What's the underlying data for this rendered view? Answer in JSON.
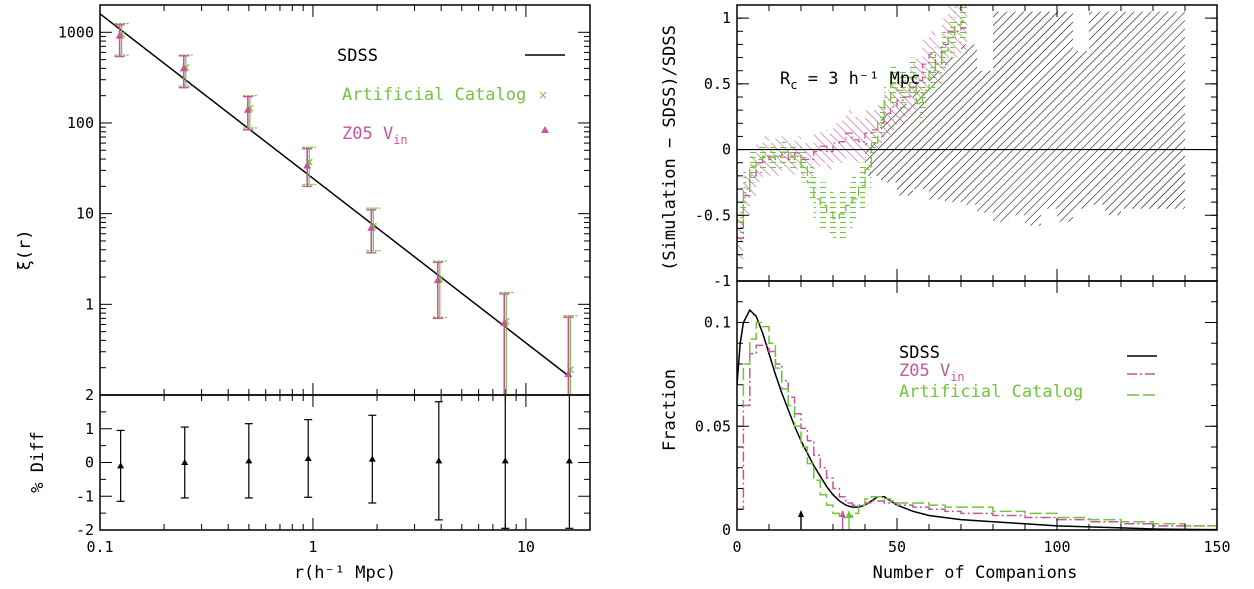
{
  "colors": {
    "sdss": "#000000",
    "artificial": "#72c43c",
    "z05": "#c8549c"
  },
  "chart_data": [
    {
      "type": "scatter",
      "panel": "correlation-function",
      "ylabel": "ξ(r)",
      "xscale": "log",
      "yscale": "log",
      "xlim": [
        0.1,
        20
      ],
      "ylim": [
        0.1,
        2000
      ],
      "y_ticks": [
        "1000",
        "100",
        "10",
        "1"
      ],
      "legend": [
        {
          "label": "SDSS",
          "style": "solid-line"
        },
        {
          "label": "Artificial Catalog",
          "style": "cross"
        },
        {
          "label_main": "Z05 V",
          "label_sub": "in",
          "style": "triangle"
        }
      ],
      "sdss_line": {
        "x": [
          0.1,
          16
        ],
        "y": [
          1600,
          0.16
        ]
      },
      "series": [
        {
          "name": "Artificial Catalog",
          "x": [
            0.125,
            0.25,
            0.5,
            0.95,
            1.9,
            3.9,
            8.0,
            16.0
          ],
          "y": [
            950,
            410,
            145,
            37,
            7.3,
            1.9,
            0.65,
            0.19
          ],
          "err_lo": [
            560,
            255,
            88,
            21,
            3.9,
            0.72,
            0.1,
            0.1
          ],
          "err_hi": [
            1250,
            560,
            200,
            54,
            11.5,
            3.0,
            1.35,
            0.75
          ]
        },
        {
          "name": "Z05 V_in",
          "x": [
            0.125,
            0.25,
            0.5,
            0.95,
            1.9,
            3.9,
            8.0,
            16.0
          ],
          "y": [
            920,
            400,
            140,
            34,
            7.0,
            1.85,
            0.62,
            0.17
          ],
          "err_lo": [
            540,
            245,
            84,
            20,
            3.7,
            0.7,
            0.1,
            0.1
          ],
          "err_hi": [
            1210,
            550,
            195,
            52,
            11.0,
            2.9,
            1.3,
            0.72
          ]
        }
      ]
    },
    {
      "type": "scatter",
      "panel": "percent-difference",
      "xlabel": "r(h⁻¹ Mpc)",
      "ylabel": "% Diff",
      "xscale": "log",
      "xlim": [
        0.1,
        20
      ],
      "ylim": [
        -2,
        2
      ],
      "x_ticks": [
        "0.1",
        "1",
        "10"
      ],
      "y_ticks": [
        "2",
        "1",
        "0",
        "-1",
        "-2"
      ],
      "x": [
        0.125,
        0.25,
        0.5,
        0.95,
        1.9,
        3.9,
        8.0,
        16.0
      ],
      "y": [
        -0.1,
        0.0,
        0.05,
        0.12,
        0.1,
        0.05,
        0.05,
        0.05
      ],
      "err": [
        1.05,
        1.05,
        1.1,
        1.15,
        1.3,
        1.75,
        2.0,
        2.0
      ]
    },
    {
      "type": "area",
      "panel": "fractional-difference",
      "ylabel": "(Simulation − SDSS)/SDSS",
      "annotation": {
        "main": "R",
        "sub": "c",
        "rest": " = 3 h⁻¹ Mpc"
      },
      "xlim": [
        0,
        150
      ],
      "ylim": [
        -1,
        1.1
      ],
      "y_ticks": [
        "1",
        "0.5",
        "0",
        "-0.5",
        "-1"
      ],
      "sdss_band": {
        "x": [
          40,
          45,
          50,
          55,
          60,
          65,
          70,
          75,
          80,
          85,
          90,
          95,
          100,
          105,
          110,
          115,
          120,
          125,
          130,
          135
        ],
        "hi": [
          0.05,
          0.28,
          0.35,
          0.45,
          0.6,
          0.7,
          0.8,
          0.6,
          1.05,
          1.05,
          1.05,
          1.05,
          1.05,
          0.75,
          1.05,
          1.05,
          1.05,
          1.05,
          1.05,
          1.05
        ],
        "lo": [
          -0.2,
          -0.25,
          -0.35,
          -0.3,
          -0.38,
          -0.4,
          -0.42,
          -0.48,
          -0.55,
          -0.5,
          -0.58,
          -0.45,
          -0.55,
          -0.45,
          -0.42,
          -0.5,
          -0.45,
          -0.45,
          -0.45,
          -0.45
        ]
      },
      "series": [
        {
          "name": "Z05 V_in",
          "x": [
            0,
            2,
            4,
            6,
            8,
            10,
            12,
            14,
            16,
            18,
            20,
            22,
            24,
            26,
            28,
            30,
            32,
            34,
            36,
            38,
            40,
            42,
            44,
            46,
            48,
            50,
            52,
            54,
            56,
            58,
            60,
            62,
            64,
            66,
            68,
            70
          ],
          "hi": [
            -0.5,
            -0.2,
            -0.05,
            0.05,
            0.1,
            0.05,
            0.1,
            0.1,
            0.05,
            0.1,
            0.05,
            0.05,
            0.12,
            0.15,
            0.12,
            0.2,
            0.22,
            0.3,
            0.25,
            0.22,
            0.3,
            0.3,
            0.35,
            0.45,
            0.5,
            0.55,
            0.55,
            0.65,
            0.7,
            0.85,
            0.9,
            0.8,
            1.0,
            1.1,
            1.1,
            1.1
          ],
          "lo": [
            -0.85,
            -0.5,
            -0.35,
            -0.25,
            -0.2,
            -0.2,
            -0.2,
            -0.15,
            -0.2,
            -0.15,
            -0.2,
            -0.2,
            -0.15,
            -0.1,
            -0.15,
            -0.1,
            -0.1,
            -0.05,
            -0.1,
            -0.1,
            -0.05,
            0.0,
            0.05,
            0.1,
            0.15,
            0.2,
            0.25,
            0.3,
            0.35,
            0.45,
            0.55,
            0.5,
            0.6,
            0.7,
            0.7,
            0.75
          ]
        },
        {
          "name": "Artificial Catalog",
          "x": [
            0,
            2,
            4,
            6,
            8,
            10,
            12,
            14,
            16,
            18,
            20,
            22,
            24,
            26,
            28,
            30,
            32,
            34,
            36,
            38,
            40,
            42,
            44,
            46,
            48,
            50,
            52,
            54,
            56,
            58,
            60,
            62,
            64,
            66,
            68,
            70
          ],
          "hi": [
            -0.4,
            -0.15,
            0.0,
            0.05,
            0.05,
            0.05,
            0.05,
            0.08,
            0.05,
            0.05,
            0.0,
            -0.1,
            -0.2,
            -0.25,
            -0.3,
            -0.35,
            -0.3,
            -0.25,
            -0.2,
            -0.1,
            0.0,
            0.15,
            0.35,
            0.5,
            0.65,
            0.6,
            0.6,
            0.7,
            0.5,
            0.6,
            0.75,
            0.8,
            0.9,
            1.0,
            1.1,
            1.1
          ],
          "lo": [
            -0.7,
            -0.45,
            -0.25,
            -0.2,
            -0.15,
            -0.15,
            -0.15,
            -0.12,
            -0.15,
            -0.15,
            -0.25,
            -0.4,
            -0.55,
            -0.6,
            -0.65,
            -0.7,
            -0.68,
            -0.6,
            -0.55,
            -0.45,
            -0.3,
            -0.05,
            0.1,
            0.25,
            0.35,
            0.3,
            0.3,
            0.4,
            0.2,
            0.3,
            0.45,
            0.5,
            0.6,
            0.7,
            0.8,
            0.85
          ]
        }
      ]
    },
    {
      "type": "line",
      "panel": "companion-distribution",
      "xlabel": "Number of Companions",
      "ylabel": "Fraction",
      "xlim": [
        0,
        150
      ],
      "ylim": [
        0,
        0.12
      ],
      "x_ticks": [
        "0",
        "50",
        "100",
        "150"
      ],
      "y_ticks": [
        "0.1",
        "0.05",
        "0"
      ],
      "legend": [
        {
          "label": "SDSS",
          "style": "solid"
        },
        {
          "label_main": "Z05 V",
          "label_sub": "in",
          "style": "dash-dot"
        },
        {
          "label": "Artificial Catalog",
          "style": "long-dash"
        }
      ],
      "series": [
        {
          "name": "SDSS",
          "style": "smooth",
          "x": [
            0,
            1,
            2,
            4,
            6,
            8,
            10,
            12,
            14,
            16,
            18,
            20,
            22,
            24,
            26,
            28,
            30,
            32,
            34,
            36,
            38,
            40,
            42,
            44,
            46,
            48,
            50,
            55,
            60,
            70,
            80,
            90,
            100,
            110,
            120,
            130,
            140,
            150
          ],
          "y": [
            0.07,
            0.09,
            0.1,
            0.106,
            0.103,
            0.095,
            0.085,
            0.075,
            0.066,
            0.058,
            0.05,
            0.043,
            0.037,
            0.031,
            0.026,
            0.021,
            0.017,
            0.014,
            0.012,
            0.011,
            0.011,
            0.012,
            0.014,
            0.016,
            0.016,
            0.014,
            0.012,
            0.009,
            0.007,
            0.005,
            0.004,
            0.003,
            0.002,
            0.0015,
            0.001,
            0.0005,
            0.0003,
            0.0002
          ]
        },
        {
          "name": "Z05 V_in",
          "style": "step",
          "x": [
            0,
            2,
            4,
            6,
            8,
            10,
            12,
            14,
            16,
            18,
            20,
            22,
            24,
            26,
            28,
            30,
            32,
            34,
            36,
            38,
            40,
            42,
            44,
            46,
            48,
            50,
            55,
            60,
            65,
            70,
            80,
            90,
            100,
            110,
            120,
            130,
            140,
            150
          ],
          "y": [
            0.01,
            0.06,
            0.085,
            0.089,
            0.089,
            0.086,
            0.08,
            0.072,
            0.064,
            0.056,
            0.049,
            0.043,
            0.036,
            0.03,
            0.025,
            0.02,
            0.016,
            0.013,
            0.012,
            0.012,
            0.013,
            0.014,
            0.014,
            0.013,
            0.013,
            0.012,
            0.011,
            0.01,
            0.009,
            0.008,
            0.007,
            0.006,
            0.005,
            0.004,
            0.003,
            0.002,
            0.002,
            0.0015
          ]
        },
        {
          "name": "Artificial Catalog",
          "style": "step",
          "x": [
            0,
            2,
            4,
            6,
            8,
            10,
            12,
            14,
            16,
            18,
            20,
            22,
            24,
            26,
            28,
            30,
            32,
            34,
            36,
            38,
            40,
            42,
            44,
            46,
            48,
            50,
            55,
            60,
            65,
            70,
            80,
            90,
            100,
            110,
            120,
            130,
            140,
            150
          ],
          "y": [
            0.06,
            0.08,
            0.092,
            0.1,
            0.098,
            0.09,
            0.078,
            0.068,
            0.06,
            0.05,
            0.04,
            0.032,
            0.024,
            0.017,
            0.012,
            0.008,
            0.006,
            0.006,
            0.008,
            0.012,
            0.015,
            0.016,
            0.016,
            0.015,
            0.014,
            0.013,
            0.013,
            0.012,
            0.011,
            0.011,
            0.009,
            0.008,
            0.006,
            0.005,
            0.004,
            0.003,
            0.002,
            0.002
          ]
        }
      ],
      "markers": [
        {
          "name": "SDSS",
          "x": 20
        },
        {
          "name": "Z05 V_in",
          "x": 33
        },
        {
          "name": "Artificial Catalog",
          "x": 35
        }
      ]
    }
  ]
}
